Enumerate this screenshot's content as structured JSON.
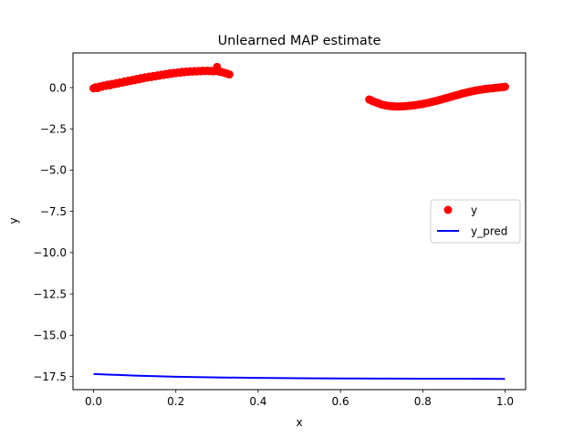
{
  "chart_data": {
    "type": "scatter",
    "title": "Unlearned MAP estimate",
    "xlabel": "x",
    "ylabel": "y",
    "xlim": [
      -0.05,
      1.05
    ],
    "ylim": [
      -18.3,
      2.1
    ],
    "xticks": [
      0.0,
      0.2,
      0.4,
      0.6,
      0.8,
      1.0
    ],
    "xtick_labels": [
      "0.0",
      "0.2",
      "0.4",
      "0.6",
      "0.8",
      "1.0"
    ],
    "yticks": [
      0.0,
      -2.5,
      -5.0,
      -7.5,
      -10.0,
      -12.5,
      -15.0,
      -17.5
    ],
    "ytick_labels": [
      "0.0",
      "−2.5",
      "−5.0",
      "−7.5",
      "−10.0",
      "−12.5",
      "−15.0",
      "−17.5"
    ],
    "grid": false,
    "legend_position": "center-right",
    "series": [
      {
        "name": "y",
        "kind": "scatter",
        "color": "#ff0000",
        "points": [
          [
            0.0,
            -0.04
          ],
          [
            0.005,
            0.02
          ],
          [
            0.01,
            -0.03
          ],
          [
            0.015,
            0.07
          ],
          [
            0.02,
            0.05
          ],
          [
            0.025,
            0.12
          ],
          [
            0.03,
            0.1
          ],
          [
            0.035,
            0.18
          ],
          [
            0.04,
            0.14
          ],
          [
            0.045,
            0.22
          ],
          [
            0.05,
            0.2
          ],
          [
            0.055,
            0.27
          ],
          [
            0.06,
            0.25
          ],
          [
            0.065,
            0.32
          ],
          [
            0.07,
            0.3
          ],
          [
            0.075,
            0.37
          ],
          [
            0.08,
            0.35
          ],
          [
            0.085,
            0.42
          ],
          [
            0.09,
            0.4
          ],
          [
            0.095,
            0.47
          ],
          [
            0.1,
            0.45
          ],
          [
            0.105,
            0.52
          ],
          [
            0.11,
            0.5
          ],
          [
            0.115,
            0.57
          ],
          [
            0.12,
            0.55
          ],
          [
            0.125,
            0.62
          ],
          [
            0.13,
            0.6
          ],
          [
            0.135,
            0.66
          ],
          [
            0.14,
            0.64
          ],
          [
            0.145,
            0.7
          ],
          [
            0.15,
            0.68
          ],
          [
            0.155,
            0.74
          ],
          [
            0.16,
            0.72
          ],
          [
            0.165,
            0.78
          ],
          [
            0.17,
            0.76
          ],
          [
            0.175,
            0.82
          ],
          [
            0.18,
            0.8
          ],
          [
            0.185,
            0.86
          ],
          [
            0.19,
            0.84
          ],
          [
            0.195,
            0.89
          ],
          [
            0.2,
            0.87
          ],
          [
            0.205,
            0.92
          ],
          [
            0.21,
            0.9
          ],
          [
            0.215,
            0.95
          ],
          [
            0.22,
            0.93
          ],
          [
            0.225,
            0.97
          ],
          [
            0.23,
            0.95
          ],
          [
            0.235,
            0.99
          ],
          [
            0.24,
            0.97
          ],
          [
            0.245,
            1.0
          ],
          [
            0.25,
            0.98
          ],
          [
            0.255,
            1.01
          ],
          [
            0.26,
            0.99
          ],
          [
            0.265,
            1.02
          ],
          [
            0.27,
            1.0
          ],
          [
            0.275,
            1.02
          ],
          [
            0.28,
            1.0
          ],
          [
            0.285,
            1.01
          ],
          [
            0.29,
            0.99
          ],
          [
            0.295,
            1.0
          ],
          [
            0.3,
            1.25
          ],
          [
            0.305,
            0.97
          ],
          [
            0.31,
            0.95
          ],
          [
            0.315,
            0.92
          ],
          [
            0.32,
            0.88
          ],
          [
            0.325,
            0.84
          ],
          [
            0.33,
            0.8
          ],
          [
            0.67,
            -0.72
          ],
          [
            0.675,
            -0.78
          ],
          [
            0.68,
            -0.84
          ],
          [
            0.685,
            -0.88
          ],
          [
            0.69,
            -0.93
          ],
          [
            0.695,
            -0.98
          ],
          [
            0.7,
            -1.02
          ],
          [
            0.705,
            -1.05
          ],
          [
            0.71,
            -1.08
          ],
          [
            0.715,
            -1.1
          ],
          [
            0.72,
            -1.12
          ],
          [
            0.725,
            -1.13
          ],
          [
            0.73,
            -1.14
          ],
          [
            0.735,
            -1.14
          ],
          [
            0.74,
            -1.15
          ],
          [
            0.745,
            -1.14
          ],
          [
            0.75,
            -1.14
          ],
          [
            0.755,
            -1.13
          ],
          [
            0.76,
            -1.12
          ],
          [
            0.765,
            -1.11
          ],
          [
            0.77,
            -1.1
          ],
          [
            0.775,
            -1.08
          ],
          [
            0.78,
            -1.07
          ],
          [
            0.785,
            -1.05
          ],
          [
            0.79,
            -1.03
          ],
          [
            0.795,
            -1.01
          ],
          [
            0.8,
            -0.99
          ],
          [
            0.805,
            -0.96
          ],
          [
            0.81,
            -0.94
          ],
          [
            0.815,
            -0.91
          ],
          [
            0.82,
            -0.88
          ],
          [
            0.825,
            -0.85
          ],
          [
            0.83,
            -0.82
          ],
          [
            0.835,
            -0.79
          ],
          [
            0.84,
            -0.76
          ],
          [
            0.845,
            -0.72
          ],
          [
            0.85,
            -0.69
          ],
          [
            0.855,
            -0.65
          ],
          [
            0.86,
            -0.62
          ],
          [
            0.865,
            -0.58
          ],
          [
            0.87,
            -0.55
          ],
          [
            0.875,
            -0.51
          ],
          [
            0.88,
            -0.48
          ],
          [
            0.885,
            -0.44
          ],
          [
            0.89,
            -0.41
          ],
          [
            0.895,
            -0.37
          ],
          [
            0.9,
            -0.34
          ],
          [
            0.905,
            -0.31
          ],
          [
            0.91,
            -0.28
          ],
          [
            0.915,
            -0.25
          ],
          [
            0.92,
            -0.22
          ],
          [
            0.925,
            -0.2
          ],
          [
            0.93,
            -0.17
          ],
          [
            0.935,
            -0.15
          ],
          [
            0.94,
            -0.13
          ],
          [
            0.945,
            -0.11
          ],
          [
            0.95,
            -0.09
          ],
          [
            0.955,
            -0.08
          ],
          [
            0.96,
            -0.06
          ],
          [
            0.965,
            -0.05
          ],
          [
            0.97,
            -0.04
          ],
          [
            0.975,
            -0.02
          ],
          [
            0.98,
            -0.01
          ],
          [
            0.985,
            0.0
          ],
          [
            0.99,
            0.02
          ],
          [
            0.995,
            0.03
          ],
          [
            1.0,
            0.05
          ]
        ]
      },
      {
        "name": "y_pred",
        "kind": "line",
        "color": "#0000ff",
        "points": [
          [
            0.0,
            -17.35
          ],
          [
            0.1,
            -17.45
          ],
          [
            0.2,
            -17.52
          ],
          [
            0.3,
            -17.56
          ],
          [
            0.4,
            -17.59
          ],
          [
            0.5,
            -17.61
          ],
          [
            0.6,
            -17.62
          ],
          [
            0.7,
            -17.63
          ],
          [
            0.8,
            -17.64
          ],
          [
            0.9,
            -17.64
          ],
          [
            1.0,
            -17.65
          ]
        ]
      }
    ]
  }
}
